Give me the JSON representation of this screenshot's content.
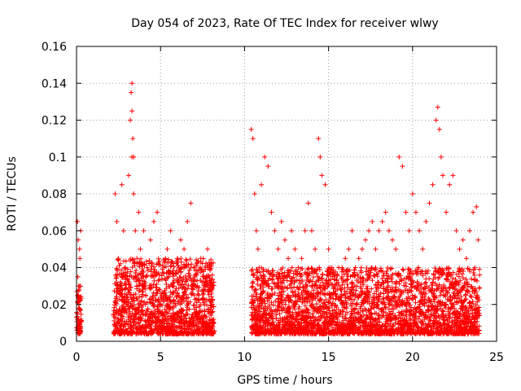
{
  "chart_data": {
    "type": "scatter",
    "title": "Day 054 of 2023, Rate Of TEC Index for receiver wlwy",
    "xlabel": "GPS time / hours",
    "ylabel": "ROTI / TECUs",
    "xlim": [
      0,
      25
    ],
    "ylim": [
      0,
      0.16
    ],
    "xticks": [
      0,
      5,
      10,
      15,
      20,
      25
    ],
    "yticks": [
      0,
      0.02,
      0.04,
      0.06,
      0.08,
      0.1,
      0.12,
      0.14,
      0.16
    ],
    "xtick_labels": [
      "0",
      "5",
      "10",
      "15",
      "20",
      "25"
    ],
    "ytick_labels": [
      "0",
      "0.02",
      "0.04",
      "0.06",
      "0.08",
      "0.1",
      "0.12",
      "0.14",
      "0.16"
    ],
    "grid": true,
    "marker": "+",
    "series": [
      {
        "name": "ROTI",
        "color": "#ff0000",
        "x": [
          0.05,
          0.1,
          0.12,
          0.15,
          0.2,
          0.25,
          0.05,
          0.1,
          0.15,
          0.2,
          0.25,
          0.08,
          0.12,
          0.18,
          0.22,
          2.3,
          2.4,
          2.5,
          2.6,
          2.5,
          2.4,
          2.7,
          2.8,
          2.9,
          3.0,
          3.1,
          3.2,
          3.25,
          3.3,
          3.35,
          3.3,
          3.4,
          3.5,
          3.6,
          3.7,
          3.8,
          3.9,
          4.0,
          4.2,
          4.4,
          4.6,
          4.8,
          5.0,
          5.2,
          5.4,
          5.6,
          5.8,
          6.0,
          6.2,
          6.4,
          6.6,
          6.8,
          7.0,
          7.2,
          7.4,
          7.6,
          7.8,
          8.0,
          8.1,
          2.5,
          3.5,
          4.5,
          5.5,
          6.5,
          7.5,
          3.3,
          3.4,
          4.1,
          5.1,
          6.1,
          7.1,
          10.4,
          10.5,
          10.6,
          10.7,
          10.8,
          11.0,
          11.2,
          11.4,
          11.6,
          11.8,
          12.0,
          12.2,
          12.4,
          12.6,
          12.8,
          13.0,
          13.2,
          13.4,
          13.6,
          13.8,
          14.0,
          14.2,
          14.4,
          14.5,
          14.6,
          14.8,
          15.0,
          15.2,
          15.4,
          15.6,
          15.8,
          16.0,
          16.2,
          16.4,
          16.6,
          16.8,
          17.0,
          17.2,
          17.4,
          17.6,
          17.8,
          18.0,
          18.2,
          18.4,
          18.6,
          18.8,
          19.0,
          19.2,
          19.4,
          19.6,
          19.8,
          20.0,
          20.2,
          20.4,
          20.6,
          20.8,
          21.0,
          21.2,
          21.4,
          21.5,
          21.6,
          21.7,
          21.8,
          22.0,
          22.2,
          22.4,
          22.6,
          22.8,
          23.0,
          23.2,
          23.4,
          23.6,
          23.8,
          23.9,
          10.5,
          11.5,
          12.5,
          13.5,
          14.5,
          15.5,
          16.5,
          17.5,
          18.5,
          19.5,
          20.5,
          21.5,
          22.5,
          23.5,
          11.0,
          12.0,
          13.0,
          14.0,
          15.0,
          16.0,
          17.0,
          18.0,
          19.0,
          20.0,
          21.0,
          22.0,
          23.0
        ],
        "y": [
          0.065,
          0.055,
          0.03,
          0.02,
          0.01,
          0.06,
          0.015,
          0.025,
          0.008,
          0.045,
          0.012,
          0.035,
          0.018,
          0.05,
          0.022,
          0.08,
          0.065,
          0.045,
          0.03,
          0.015,
          0.01,
          0.085,
          0.06,
          0.04,
          0.02,
          0.09,
          0.12,
          0.135,
          0.14,
          0.11,
          0.1,
          0.08,
          0.06,
          0.045,
          0.07,
          0.05,
          0.03,
          0.06,
          0.04,
          0.055,
          0.065,
          0.07,
          0.02,
          0.04,
          0.05,
          0.06,
          0.03,
          0.045,
          0.055,
          0.05,
          0.065,
          0.075,
          0.04,
          0.03,
          0.045,
          0.035,
          0.05,
          0.03,
          0.02,
          0.012,
          0.015,
          0.01,
          0.018,
          0.014,
          0.012,
          0.125,
          0.1,
          0.02,
          0.016,
          0.01,
          0.015,
          0.115,
          0.11,
          0.08,
          0.06,
          0.05,
          0.085,
          0.1,
          0.095,
          0.07,
          0.06,
          0.05,
          0.065,
          0.055,
          0.045,
          0.06,
          0.05,
          0.04,
          0.045,
          0.06,
          0.075,
          0.06,
          0.05,
          0.11,
          0.1,
          0.09,
          0.085,
          0.05,
          0.04,
          0.03,
          0.04,
          0.035,
          0.045,
          0.05,
          0.06,
          0.04,
          0.045,
          0.05,
          0.055,
          0.06,
          0.065,
          0.05,
          0.06,
          0.065,
          0.07,
          0.06,
          0.055,
          0.05,
          0.1,
          0.095,
          0.07,
          0.06,
          0.08,
          0.07,
          0.06,
          0.05,
          0.065,
          0.075,
          0.085,
          0.12,
          0.127,
          0.115,
          0.1,
          0.09,
          0.07,
          0.085,
          0.09,
          0.06,
          0.05,
          0.055,
          0.045,
          0.06,
          0.07,
          0.073,
          0.055,
          0.012,
          0.014,
          0.01,
          0.016,
          0.012,
          0.015,
          0.011,
          0.013,
          0.014,
          0.012,
          0.016,
          0.01,
          0.013,
          0.012,
          0.022,
          0.025,
          0.02,
          0.024,
          0.018,
          0.022,
          0.021,
          0.023,
          0.02,
          0.025,
          0.022,
          0.02,
          0.018
        ]
      }
    ],
    "dense_bands": [
      {
        "x_start": 0.0,
        "x_end": 0.3,
        "y_low": 0.004,
        "y_high": 0.03,
        "count": 60
      },
      {
        "x_start": 2.2,
        "x_end": 8.2,
        "y_low": 0.004,
        "y_high": 0.045,
        "count": 1400
      },
      {
        "x_start": 10.4,
        "x_end": 24.0,
        "y_low": 0.004,
        "y_high": 0.04,
        "count": 3000
      }
    ]
  }
}
